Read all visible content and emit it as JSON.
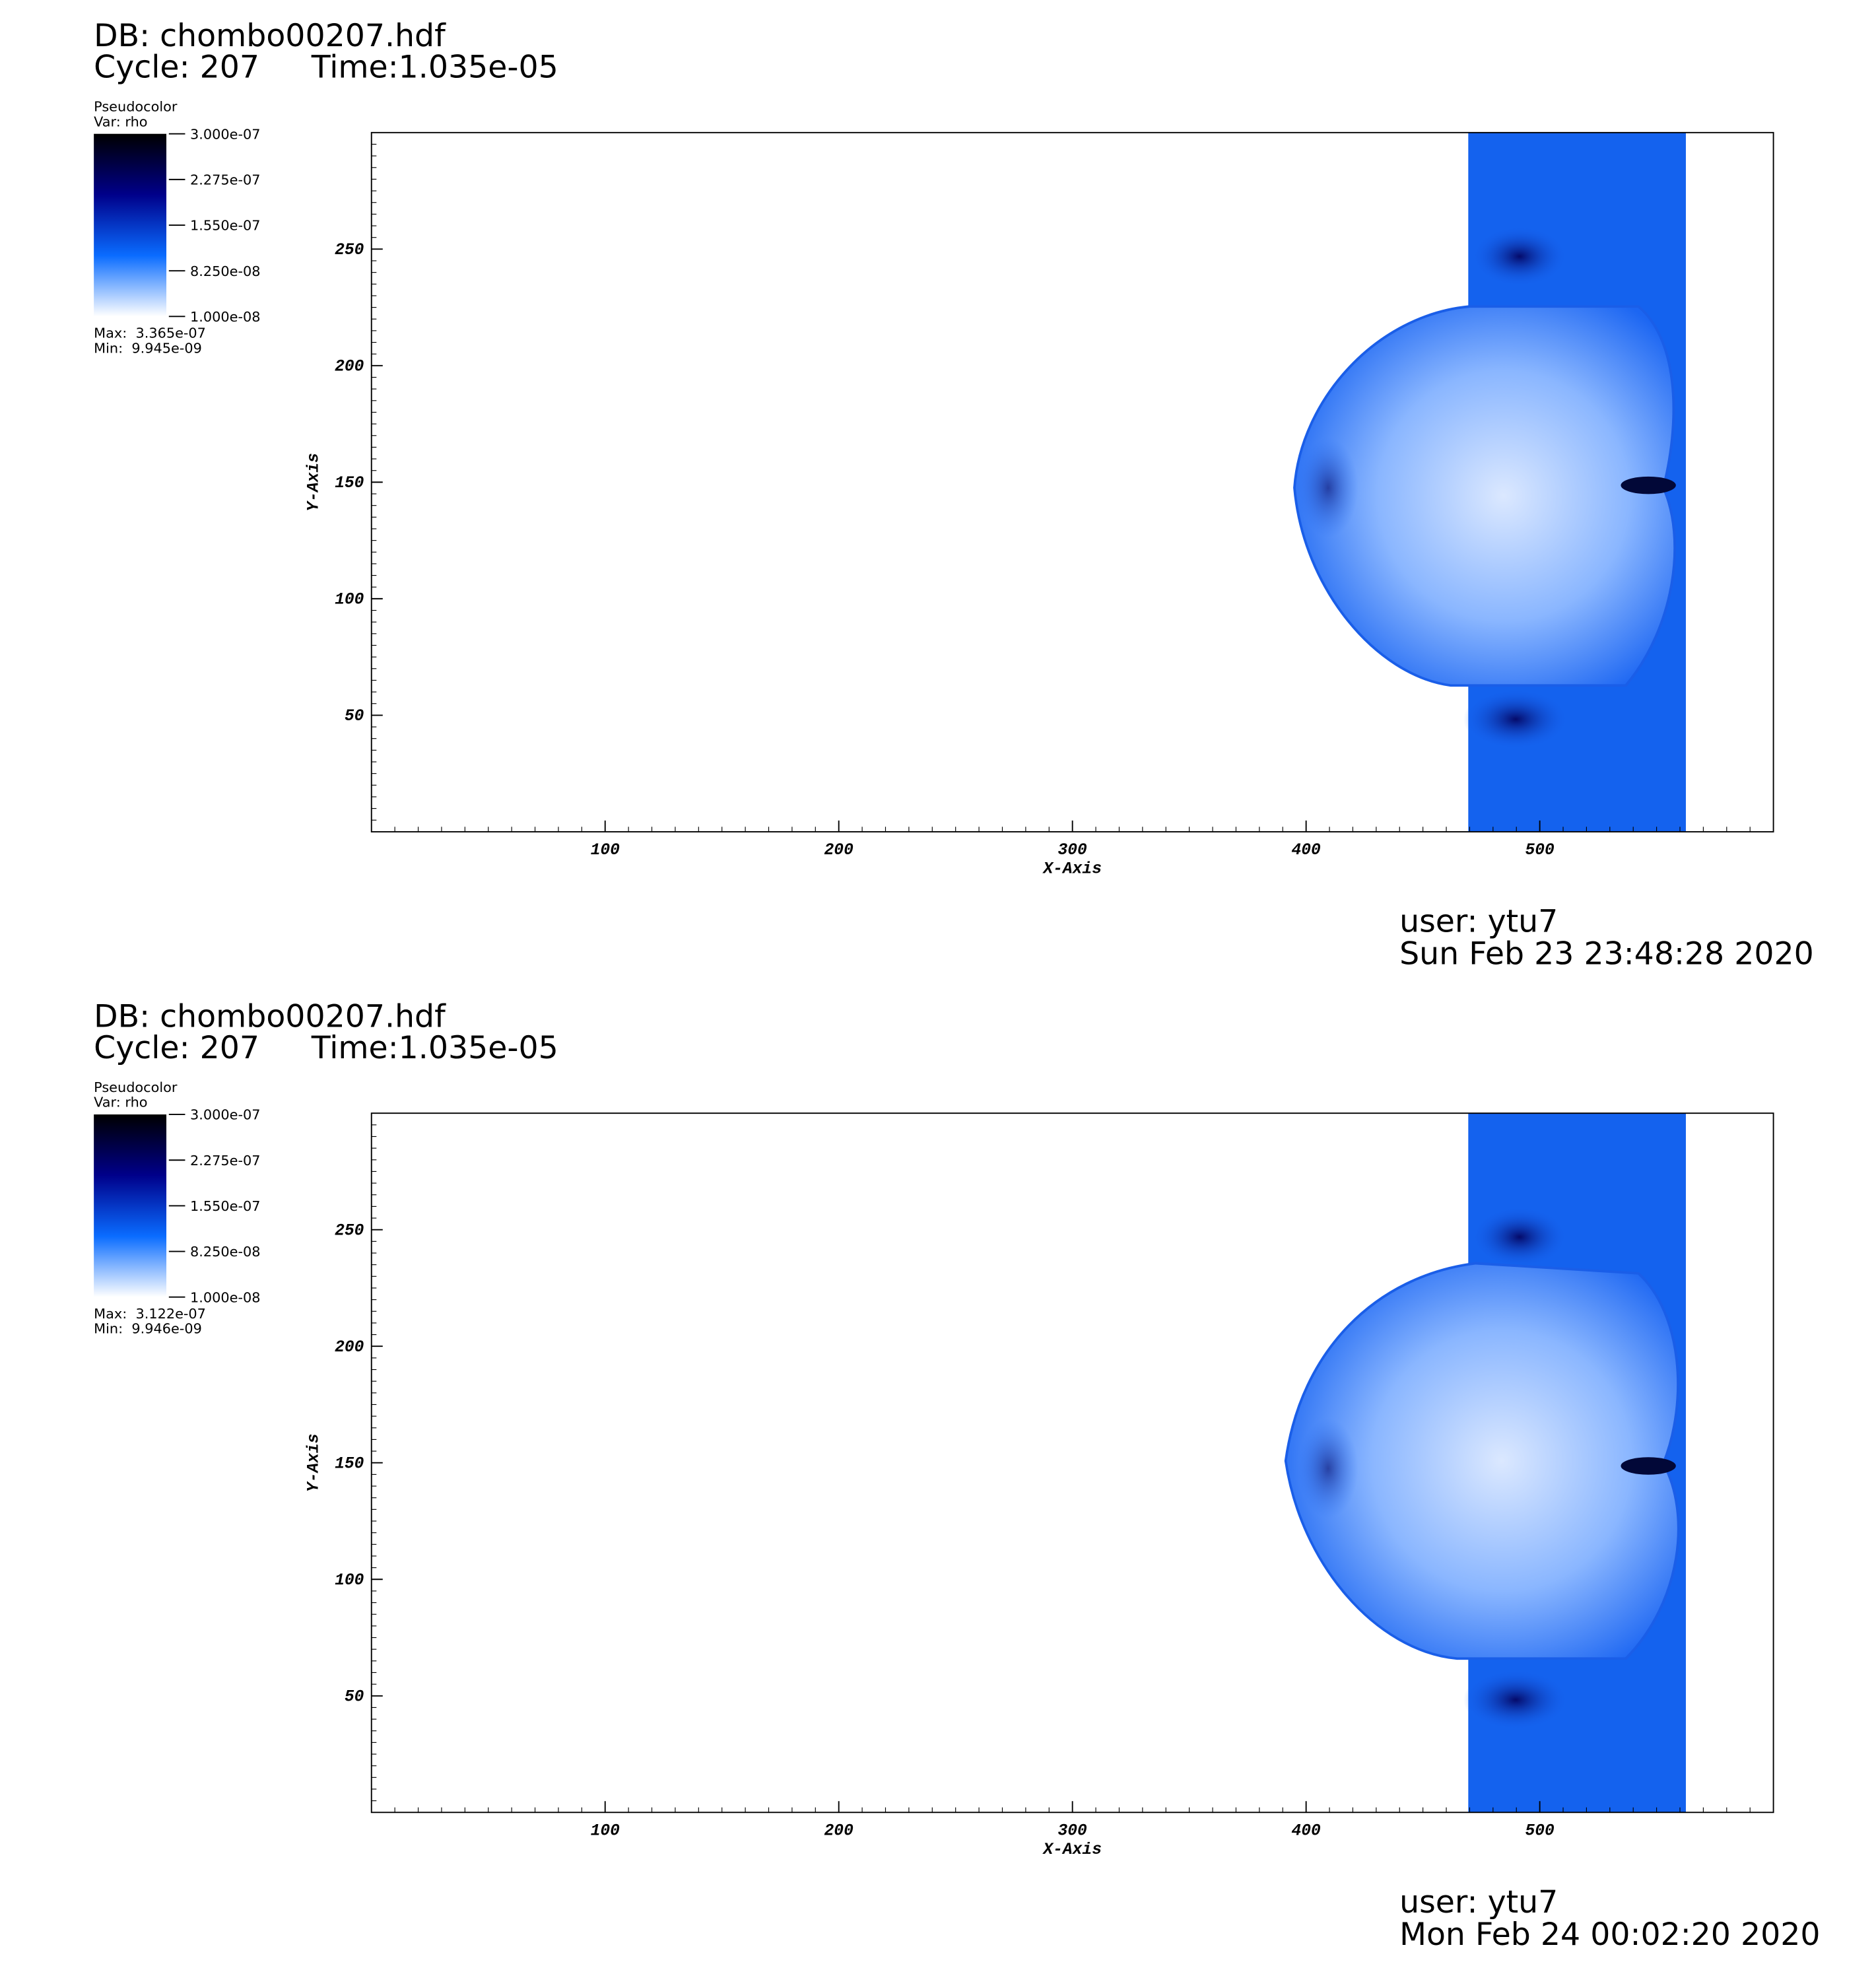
{
  "chart_data": [
    {
      "type": "pseudocolor",
      "db": "DB: chombo00207.hdf",
      "cycle": "Cycle: 207",
      "time": "Time:1.035e-05",
      "plot_name": "Pseudocolor",
      "var": "Var: rho",
      "clim": [
        1e-08,
        3e-07
      ],
      "colorbar_ticks": [
        {
          "value": 3e-07,
          "label": "3.000e-07"
        },
        {
          "value": 2.275e-07,
          "label": "2.275e-07"
        },
        {
          "value": 1.55e-07,
          "label": "1.550e-07"
        },
        {
          "value": 8.25e-08,
          "label": "8.250e-08"
        },
        {
          "value": 1e-08,
          "label": "1.000e-08"
        }
      ],
      "colormap": [
        "#ffffff",
        "#0a6cff",
        "#00008a",
        "#000000"
      ],
      "max": "Max:  3.365e-07",
      "min": "Min:  9.945e-09",
      "xlabel": "X-Axis",
      "ylabel": "Y-Axis",
      "xlim": [
        0,
        600
      ],
      "xticks": [
        100,
        200,
        300,
        400,
        500
      ],
      "ylim": [
        0,
        300
      ],
      "yticks": [
        50,
        100,
        150,
        200,
        250
      ],
      "user": "user: ytu7",
      "date": "Sun Feb 23 23:48:28 2020"
    },
    {
      "type": "pseudocolor",
      "db": "DB: chombo00207.hdf",
      "cycle": "Cycle: 207",
      "time": "Time:1.035e-05",
      "plot_name": "Pseudocolor",
      "var": "Var: rho",
      "clim": [
        1e-08,
        3e-07
      ],
      "colorbar_ticks": [
        {
          "value": 3e-07,
          "label": "3.000e-07"
        },
        {
          "value": 2.275e-07,
          "label": "2.275e-07"
        },
        {
          "value": 1.55e-07,
          "label": "1.550e-07"
        },
        {
          "value": 8.25e-08,
          "label": "8.250e-08"
        },
        {
          "value": 1e-08,
          "label": "1.000e-08"
        }
      ],
      "colormap": [
        "#ffffff",
        "#0a6cff",
        "#00008a",
        "#000000"
      ],
      "max": "Max:  3.122e-07",
      "min": "Min:  9.946e-09",
      "xlabel": "X-Axis",
      "ylabel": "Y-Axis",
      "xlim": [
        0,
        600
      ],
      "xticks": [
        100,
        200,
        300,
        400,
        500
      ],
      "ylim": [
        0,
        300
      ],
      "yticks": [
        50,
        100,
        150,
        200,
        250
      ],
      "user": "user: ytu7",
      "date": "Mon Feb 24 00:02:20 2020"
    }
  ]
}
